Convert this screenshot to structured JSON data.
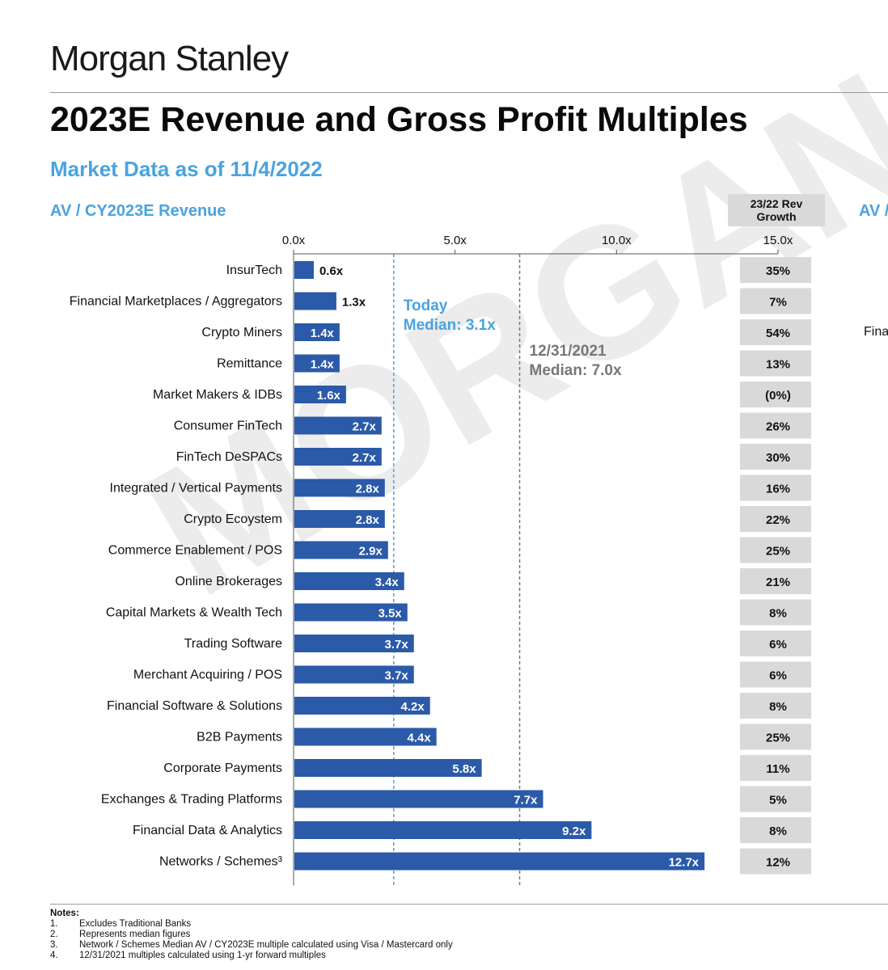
{
  "header": {
    "logo": "Morgan Stanley",
    "title": "2023E Revenue and Gross Profit Multiples",
    "subtitle": "Market Data as of 11/4/2022",
    "section_label": "AV / CY2023E Revenue",
    "section_label_2": "AV /",
    "growth_header_line1": "23/22 Rev",
    "growth_header_line2": "Growth",
    "side_cut_text": "Fina",
    "watermark": "MORGAN S"
  },
  "chart_data": {
    "type": "bar",
    "orientation": "horizontal",
    "title": "AV / CY2023E Revenue",
    "categories": [
      "InsurTech",
      "Financial Marketplaces / Aggregators",
      "Crypto Miners",
      "Remittance",
      "Market Makers & IDBs",
      "Consumer FinTech",
      "FinTech DeSPACs",
      "Integrated / Vertical Payments",
      "Crypto Ecoystem",
      "Commerce Enablement / POS",
      "Online Brokerages",
      "Capital Markets & Wealth Tech",
      "Trading Software",
      "Merchant Acquiring / POS",
      "Financial Software & Solutions",
      "B2B Payments",
      "Corporate Payments",
      "Exchanges & Trading Platforms",
      "Financial Data & Analytics",
      "Networks / Schemes³"
    ],
    "values": [
      0.6,
      1.3,
      1.4,
      1.4,
      1.6,
      2.7,
      2.7,
      2.8,
      2.8,
      2.9,
      3.4,
      3.5,
      3.7,
      3.7,
      4.2,
      4.4,
      5.8,
      7.7,
      9.2,
      12.7
    ],
    "value_labels": [
      "0.6x",
      "1.3x",
      "1.4x",
      "1.4x",
      "1.6x",
      "2.7x",
      "2.7x",
      "2.8x",
      "2.8x",
      "2.9x",
      "3.4x",
      "3.5x",
      "3.7x",
      "3.7x",
      "4.2x",
      "4.4x",
      "5.8x",
      "7.7x",
      "9.2x",
      "12.7x"
    ],
    "growth": [
      "35%",
      "7%",
      "54%",
      "13%",
      "(0%)",
      "26%",
      "30%",
      "16%",
      "22%",
      "25%",
      "21%",
      "8%",
      "6%",
      "6%",
      "8%",
      "25%",
      "11%",
      "5%",
      "8%",
      "12%"
    ],
    "xlim": [
      0,
      15
    ],
    "x_ticks": [
      0,
      5,
      10,
      15
    ],
    "x_tick_labels": [
      "0.0x",
      "5.0x",
      "10.0x",
      "15.0x"
    ],
    "reference_lines": [
      {
        "value": 3.1,
        "label_line1": "Today",
        "label_line2": "Median: 3.1x",
        "color": "#4aa3df",
        "style": "dashed"
      },
      {
        "value": 7.0,
        "label_line1": "12/31/2021",
        "label_line2": "Median: 7.0x",
        "color": "#777777",
        "style": "dashed"
      }
    ],
    "bar_color": "#2a5aa8",
    "grid": false
  },
  "notes": {
    "title": "Notes:",
    "items": [
      {
        "num": "1.",
        "text": "Excludes Traditional Banks"
      },
      {
        "num": "2.",
        "text": "Represents median figures"
      },
      {
        "num": "3.",
        "text": "Network / Schemes Median AV / CY2023E multiple calculated using Visa / Mastercard only"
      },
      {
        "num": "4.",
        "text": "12/31/2021 multiples calculated using 1-yr forward multiples"
      }
    ]
  }
}
